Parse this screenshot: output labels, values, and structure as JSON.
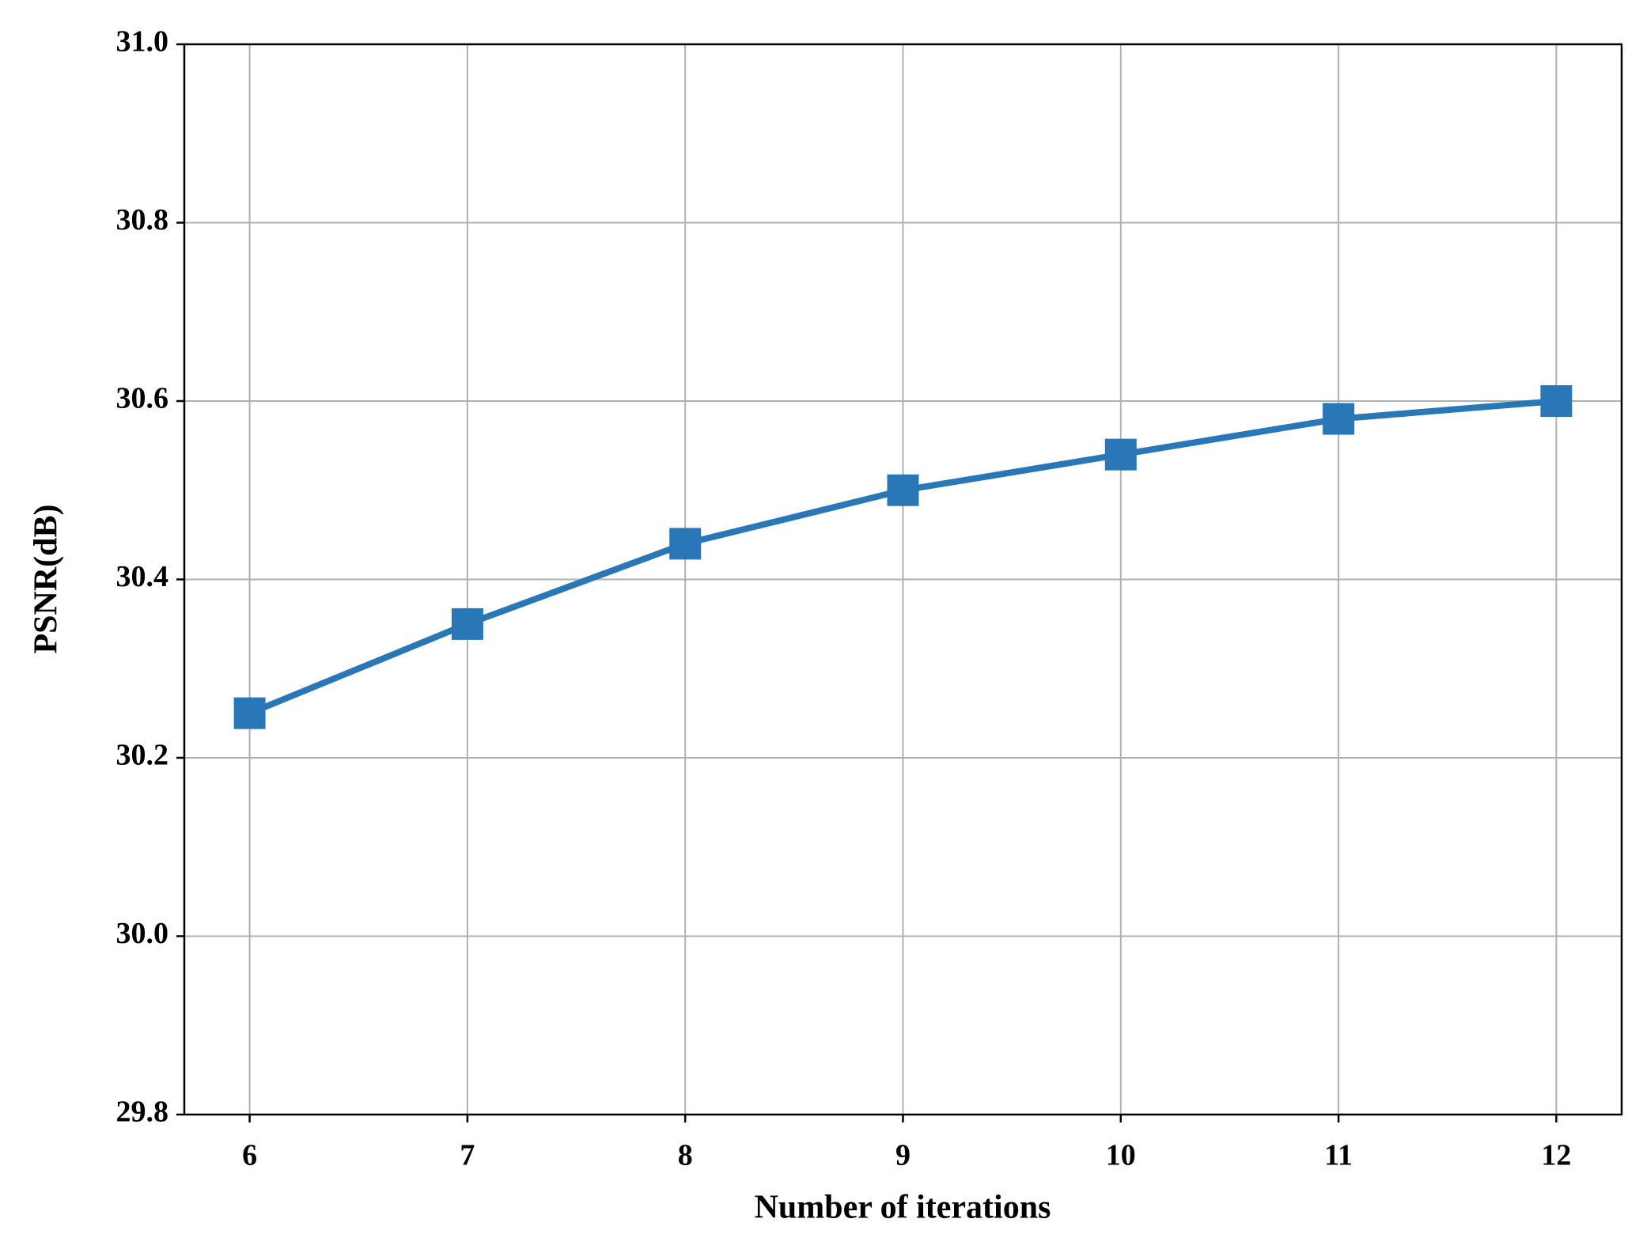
{
  "chart_data": {
    "type": "line",
    "x_label": "Number of iterations",
    "y_label": "PSNR(dB)",
    "x": [
      6,
      7,
      8,
      9,
      10,
      11,
      12
    ],
    "values": [
      30.25,
      30.35,
      30.44,
      30.5,
      30.54,
      30.58,
      30.6
    ],
    "color": "#2a77b8",
    "marker": "square",
    "xlim": [
      5.7,
      12.3
    ],
    "xticks": [
      6,
      7,
      8,
      9,
      10,
      11,
      12
    ],
    "ylim": [
      29.8,
      31.0
    ],
    "yticks": [
      29.8,
      {
        "value": 30.0,
        "label": "30.0"
      },
      30.2,
      30.4,
      30.6,
      30.8,
      {
        "value": 31.0,
        "label": "31.0"
      }
    ],
    "grid": true
  }
}
